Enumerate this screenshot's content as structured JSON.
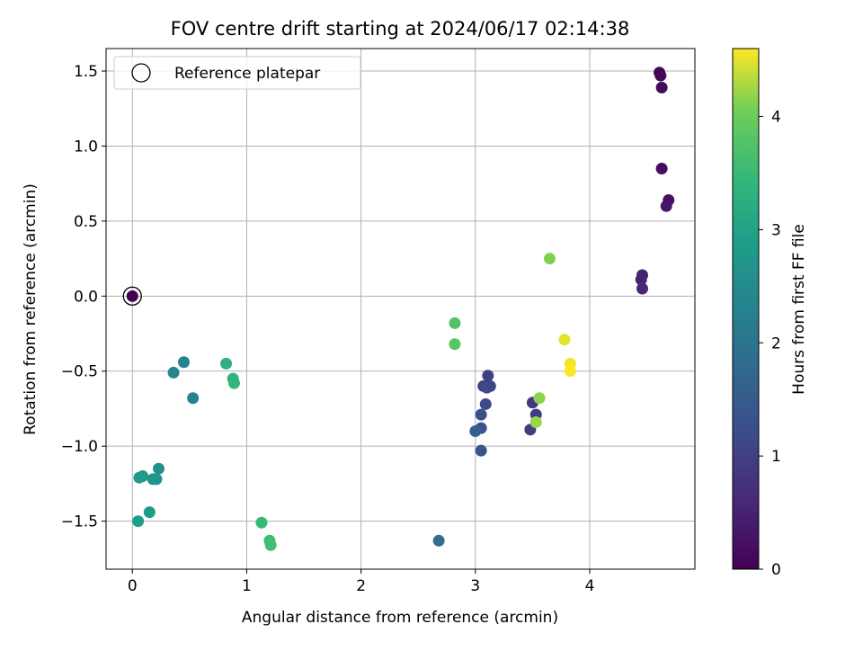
{
  "chart_data": {
    "type": "scatter",
    "title": "FOV centre drift starting at 2024/06/17 02:14:38",
    "xlabel": "Angular distance from reference (arcmin)",
    "ylabel": "Rotation from reference (arcmin)",
    "xlim": [
      -0.23,
      4.92
    ],
    "ylim": [
      -1.82,
      1.65
    ],
    "xticks": [
      0,
      1,
      2,
      3,
      4
    ],
    "yticks": [
      -1.5,
      -1.0,
      -0.5,
      0.0,
      0.5,
      1.0,
      1.5
    ],
    "xtick_labels": [
      "0",
      "1",
      "2",
      "3",
      "4"
    ],
    "ytick_labels": [
      "−1.5",
      "−1.0",
      "−0.5",
      "0.0",
      "0.5",
      "1.0",
      "1.5"
    ],
    "grid": true,
    "legend": {
      "position": "top-left",
      "entries": [
        "Reference platepar"
      ]
    },
    "reference_point": {
      "x": 0,
      "y": 0,
      "label": "Reference platepar"
    },
    "colorbar": {
      "label": "Hours from first FF file",
      "colormap": "viridis",
      "range": [
        0,
        4.6
      ],
      "ticks": [
        0,
        1,
        2,
        3,
        4
      ],
      "tick_labels": [
        "0",
        "1",
        "2",
        "3",
        "4"
      ]
    },
    "points": [
      {
        "x": 0.0,
        "y": 0.0,
        "c": 0.0
      },
      {
        "x": 4.61,
        "y": 1.49,
        "c": 0.1
      },
      {
        "x": 4.62,
        "y": 1.47,
        "c": 0.12
      },
      {
        "x": 4.63,
        "y": 1.39,
        "c": 0.15
      },
      {
        "x": 4.63,
        "y": 0.85,
        "c": 0.2
      },
      {
        "x": 4.69,
        "y": 0.64,
        "c": 0.25
      },
      {
        "x": 4.67,
        "y": 0.6,
        "c": 0.3
      },
      {
        "x": 4.46,
        "y": 0.14,
        "c": 0.45
      },
      {
        "x": 4.45,
        "y": 0.11,
        "c": 0.5
      },
      {
        "x": 4.46,
        "y": 0.05,
        "c": 0.55
      },
      {
        "x": 3.5,
        "y": -0.71,
        "c": 0.85
      },
      {
        "x": 3.53,
        "y": -0.79,
        "c": 0.9
      },
      {
        "x": 3.48,
        "y": -0.89,
        "c": 0.95
      },
      {
        "x": 3.11,
        "y": -0.53,
        "c": 1.0
      },
      {
        "x": 3.07,
        "y": -0.6,
        "c": 1.05
      },
      {
        "x": 3.13,
        "y": -0.6,
        "c": 1.1
      },
      {
        "x": 3.1,
        "y": -0.61,
        "c": 1.15
      },
      {
        "x": 3.09,
        "y": -0.72,
        "c": 1.2
      },
      {
        "x": 3.05,
        "y": -0.79,
        "c": 1.25
      },
      {
        "x": 3.05,
        "y": -0.88,
        "c": 1.3
      },
      {
        "x": 3.05,
        "y": -1.03,
        "c": 1.35
      },
      {
        "x": 3.0,
        "y": -0.9,
        "c": 1.6
      },
      {
        "x": 2.68,
        "y": -1.63,
        "c": 1.9
      },
      {
        "x": 0.53,
        "y": -0.68,
        "c": 2.3
      },
      {
        "x": 0.45,
        "y": -0.44,
        "c": 2.35
      },
      {
        "x": 0.36,
        "y": -0.51,
        "c": 2.4
      },
      {
        "x": 0.23,
        "y": -1.15,
        "c": 2.6
      },
      {
        "x": 0.21,
        "y": -1.22,
        "c": 2.65
      },
      {
        "x": 0.18,
        "y": -1.22,
        "c": 2.7
      },
      {
        "x": 0.09,
        "y": -1.2,
        "c": 2.75
      },
      {
        "x": 0.06,
        "y": -1.21,
        "c": 2.8
      },
      {
        "x": 0.15,
        "y": -1.44,
        "c": 2.85
      },
      {
        "x": 0.05,
        "y": -1.5,
        "c": 2.9
      },
      {
        "x": 0.82,
        "y": -0.45,
        "c": 3.3
      },
      {
        "x": 0.88,
        "y": -0.55,
        "c": 3.35
      },
      {
        "x": 0.89,
        "y": -0.58,
        "c": 3.4
      },
      {
        "x": 1.13,
        "y": -1.51,
        "c": 3.5
      },
      {
        "x": 1.2,
        "y": -1.63,
        "c": 3.55
      },
      {
        "x": 1.21,
        "y": -1.66,
        "c": 3.6
      },
      {
        "x": 2.82,
        "y": -0.18,
        "c": 3.75
      },
      {
        "x": 2.82,
        "y": -0.32,
        "c": 3.8
      },
      {
        "x": 3.65,
        "y": 0.25,
        "c": 4.1
      },
      {
        "x": 3.56,
        "y": -0.68,
        "c": 4.15
      },
      {
        "x": 3.53,
        "y": -0.84,
        "c": 4.2
      },
      {
        "x": 3.78,
        "y": -0.29,
        "c": 4.5
      },
      {
        "x": 3.83,
        "y": -0.45,
        "c": 4.55
      },
      {
        "x": 3.83,
        "y": -0.5,
        "c": 4.6
      }
    ]
  }
}
